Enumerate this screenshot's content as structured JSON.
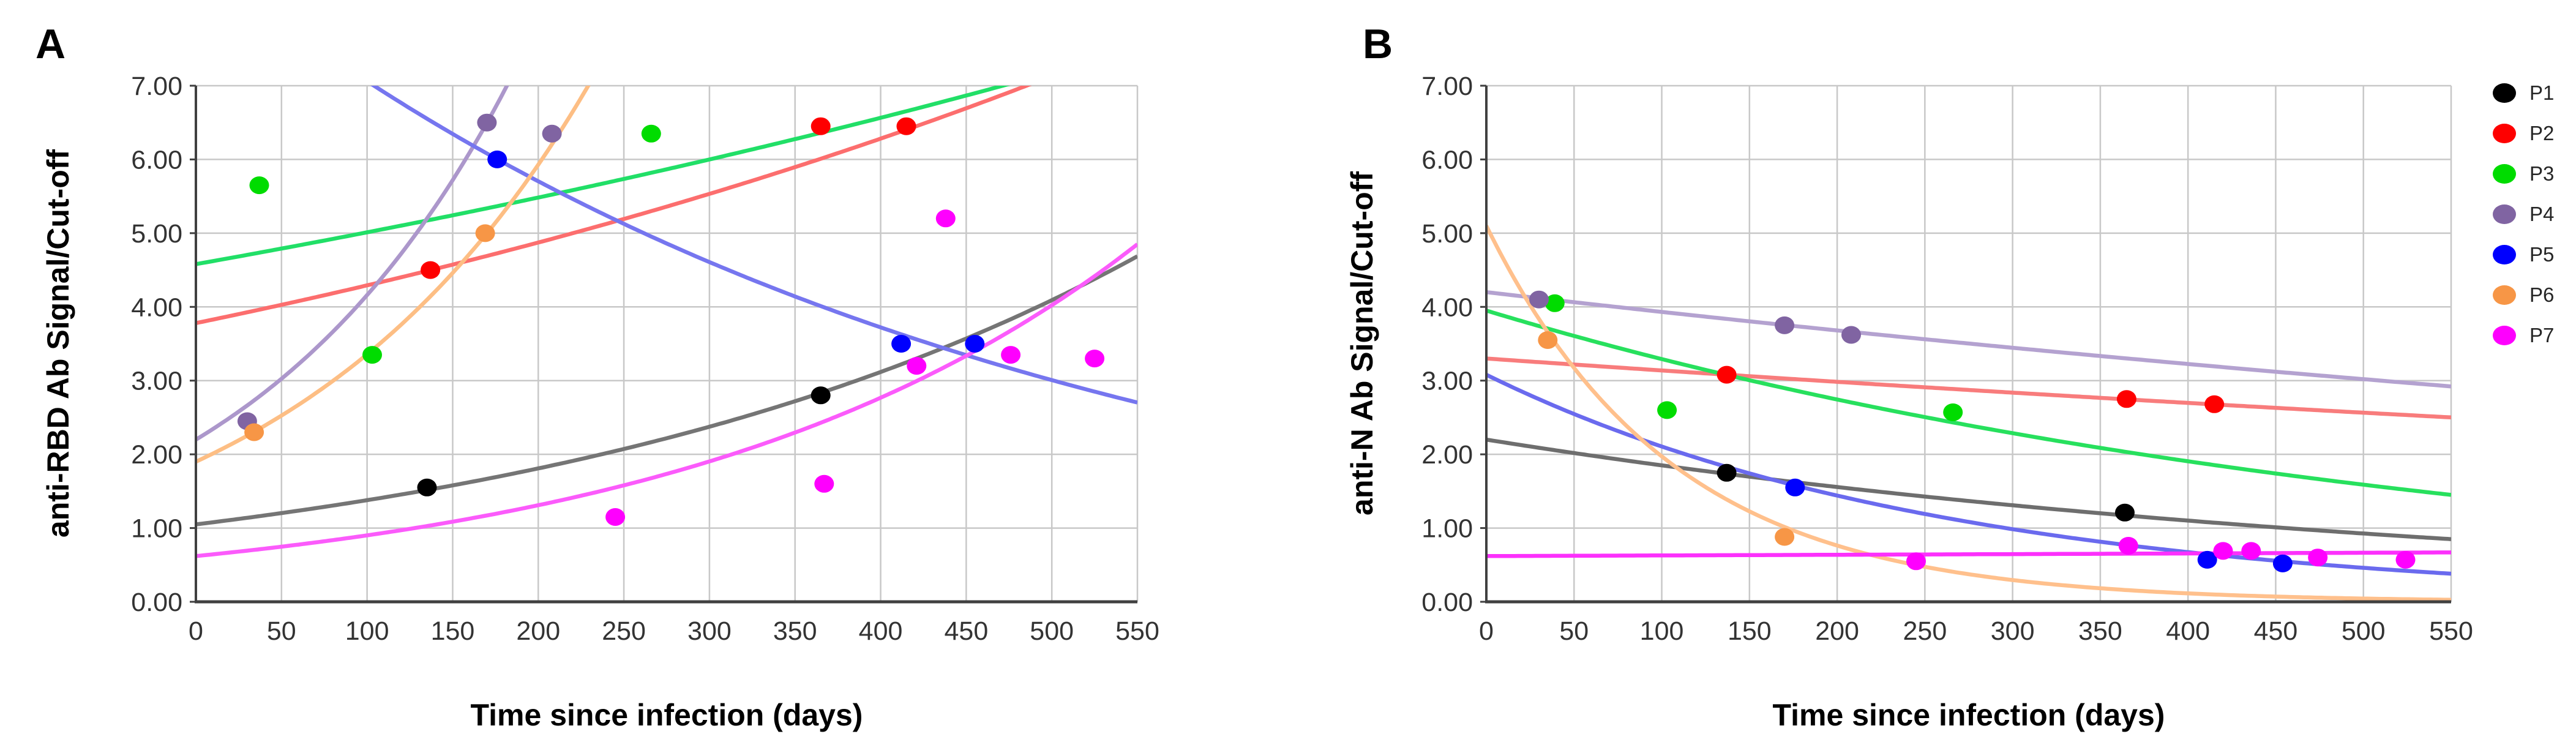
{
  "figure": {
    "background": "#ffffff",
    "panels": [
      {
        "label": "A",
        "y_title": "anti-RBD Ab Signal/Cut-off",
        "x_title": "Time since infection (days)"
      },
      {
        "label": "B",
        "y_title": "anti-N Ab Signal/Cut-off",
        "x_title": "Time since infection (days)"
      }
    ],
    "legend": {
      "position": "right",
      "items": [
        {
          "name": "P1",
          "color": "#000000"
        },
        {
          "name": "P2",
          "color": "#FE0000"
        },
        {
          "name": "P3",
          "color": "#00DC00"
        },
        {
          "name": "P4",
          "color": "#8064A2"
        },
        {
          "name": "P5",
          "color": "#0000FE"
        },
        {
          "name": "P6",
          "color": "#F79646"
        },
        {
          "name": "P7",
          "color": "#FE00FE"
        }
      ]
    }
  },
  "chart_data": [
    {
      "type": "scatter",
      "panel": "A",
      "title": "",
      "xlabel": "Time since infection (days)",
      "ylabel": "anti-RBD Ab Signal/Cut-off",
      "xlim": [
        0,
        550
      ],
      "ylim": [
        0,
        7
      ],
      "xticks": [
        0,
        50,
        100,
        150,
        200,
        250,
        300,
        350,
        400,
        450,
        500,
        550
      ],
      "ytick_labels": [
        "0.00",
        "1.00",
        "2.00",
        "3.00",
        "4.00",
        "5.00",
        "6.00",
        "7.00"
      ],
      "grid": true,
      "trend_model": "y = a * exp(b * x)",
      "series": [
        {
          "name": "P1",
          "point_color": "#000000",
          "line_color": "#757575",
          "points": [
            [
              135,
              1.55
            ],
            [
              365,
              2.8
            ]
          ],
          "trend": {
            "type": "exponential",
            "a": 1.05,
            "b": 0.00272
          }
        },
        {
          "name": "P2",
          "point_color": "#FE0000",
          "line_color": "#FC6E6E",
          "points": [
            [
              137,
              4.5
            ],
            [
              365,
              6.45
            ],
            [
              415,
              6.45
            ]
          ],
          "trend": {
            "type": "exponential",
            "a": 3.78,
            "b": 0.00127
          }
        },
        {
          "name": "P3",
          "point_color": "#00DC00",
          "line_color": "#21DF67",
          "points": [
            [
              37,
              5.65
            ],
            [
              103,
              3.35
            ],
            [
              266,
              6.35
            ]
          ],
          "trend": {
            "type": "exponential",
            "a": 4.58,
            "b": 0.0009
          }
        },
        {
          "name": "P4",
          "point_color": "#8064A2",
          "line_color": "#AC97CB",
          "points": [
            [
              30,
              2.45
            ],
            [
              170,
              6.5
            ],
            [
              208,
              6.35
            ]
          ],
          "trend": {
            "type": "exponential",
            "a": 2.2,
            "b": 0.00637
          }
        },
        {
          "name": "P5",
          "point_color": "#0000FE",
          "line_color": "#7676EF",
          "points": [
            [
              176,
              6.0
            ],
            [
              412,
              3.5
            ],
            [
              455,
              3.5
            ]
          ],
          "trend": {
            "type": "exponential",
            "a": 8.74,
            "b": -0.002134
          }
        },
        {
          "name": "P6",
          "point_color": "#F79646",
          "line_color": "#FDBE84",
          "points": [
            [
              34,
              2.3
            ],
            [
              169,
              5.0
            ]
          ],
          "trend": {
            "type": "exponential",
            "a": 1.9,
            "b": 0.00569
          }
        },
        {
          "name": "P7",
          "point_color": "#FE00FE",
          "line_color": "#FB5BFB",
          "points": [
            [
              245,
              1.15
            ],
            [
              367,
              1.6
            ],
            [
              421,
              3.2
            ],
            [
              438,
              5.2
            ],
            [
              476,
              3.35
            ],
            [
              525,
              3.3
            ]
          ],
          "trend": {
            "type": "exponential",
            "a": 0.62,
            "b": 0.00374
          }
        }
      ]
    },
    {
      "type": "scatter",
      "panel": "B",
      "title": "",
      "xlabel": "Time since infection (days)",
      "ylabel": "anti-N Ab Signal/Cut-off",
      "xlim": [
        0,
        550
      ],
      "ylim": [
        0,
        7
      ],
      "xticks": [
        0,
        50,
        100,
        150,
        200,
        250,
        300,
        350,
        400,
        450,
        500,
        550
      ],
      "ytick_labels": [
        "0.00",
        "1.00",
        "2.00",
        "3.00",
        "4.00",
        "5.00",
        "6.00",
        "7.00"
      ],
      "grid": true,
      "trend_model": "y = a * exp(b * x)",
      "series": [
        {
          "name": "P1",
          "point_color": "#000000",
          "line_color": "#6E6E6E",
          "points": [
            [
              137,
              1.75
            ],
            [
              364,
              1.21
            ]
          ],
          "trend": {
            "type": "exponential",
            "a": 2.2,
            "b": -0.00173
          }
        },
        {
          "name": "P2",
          "point_color": "#FE0000",
          "line_color": "#F87C7C",
          "points": [
            [
              137,
              3.08
            ],
            [
              365,
              2.75
            ],
            [
              415,
              2.68
            ]
          ],
          "trend": {
            "type": "exponential",
            "a": 3.3,
            "b": -0.000504
          }
        },
        {
          "name": "P3",
          "point_color": "#00DC00",
          "line_color": "#27E05D",
          "points": [
            [
              39,
              4.05
            ],
            [
              103,
              2.6
            ],
            [
              266,
              2.57
            ]
          ],
          "trend": {
            "type": "exponential",
            "a": 3.95,
            "b": -0.001822
          }
        },
        {
          "name": "P4",
          "point_color": "#8064A2",
          "line_color": "#B4A2D0",
          "points": [
            [
              30,
              4.1
            ],
            [
              170,
              3.75
            ],
            [
              208,
              3.62
            ]
          ],
          "trend": {
            "type": "exponential",
            "a": 4.2,
            "b": -0.00066
          }
        },
        {
          "name": "P5",
          "point_color": "#0000FE",
          "line_color": "#6A6AEE",
          "points": [
            [
              176,
              1.55
            ],
            [
              411,
              0.57
            ],
            [
              454,
              0.52
            ]
          ],
          "trend": {
            "type": "exponential",
            "a": 3.08,
            "b": -0.0038
          }
        },
        {
          "name": "P6",
          "point_color": "#F79646",
          "line_color": "#FFC08C",
          "points": [
            [
              35,
              3.55
            ],
            [
              170,
              0.88
            ]
          ],
          "trend": {
            "type": "exponential",
            "a": 5.1,
            "b": -0.0095
          }
        },
        {
          "name": "P7",
          "point_color": "#FE00FE",
          "line_color": "#FC30FC",
          "points": [
            [
              245,
              0.55
            ],
            [
              366,
              0.76
            ],
            [
              420,
              0.69
            ],
            [
              436,
              0.69
            ],
            [
              474,
              0.6
            ],
            [
              524,
              0.57
            ]
          ],
          "trend": {
            "type": "exponential",
            "a": 0.62,
            "b": 0.00014
          }
        }
      ]
    }
  ]
}
